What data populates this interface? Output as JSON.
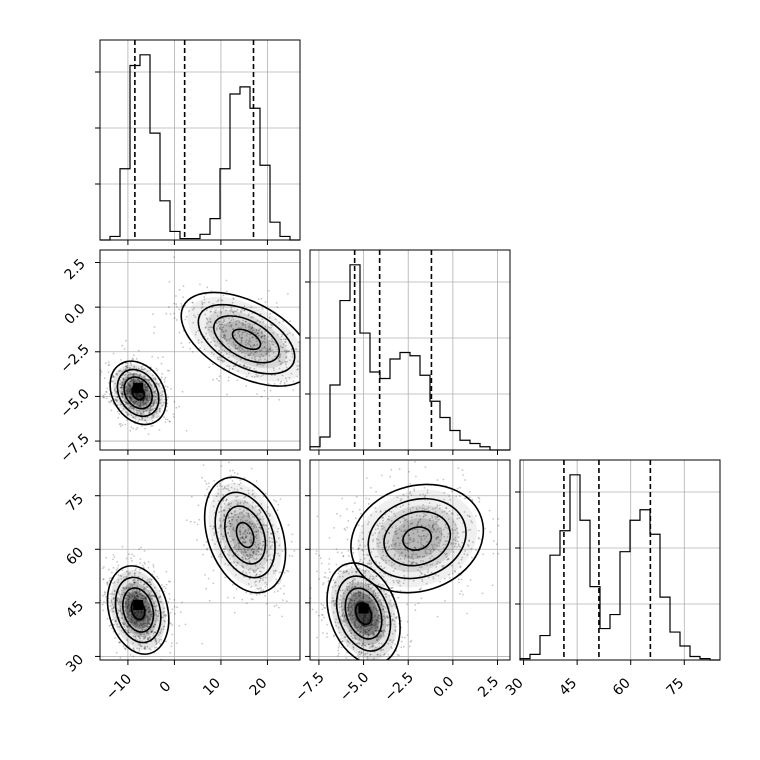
{
  "chart_data": {
    "type": "corner",
    "parameters": [
      {
        "name": "",
        "range": [
          -16,
          27
        ],
        "ticks": [
          -10,
          0,
          10,
          20
        ],
        "tick_labels": [
          "−10",
          "0",
          "10",
          "20"
        ]
      },
      {
        "name": "",
        "range": [
          -8,
          3.2
        ],
        "ticks": [
          -7.5,
          -5.0,
          -2.5,
          0.0,
          2.5
        ],
        "tick_labels": [
          "−7.5",
          "−5.0",
          "−2.5",
          "0.0",
          "2.5"
        ]
      },
      {
        "name": "",
        "range": [
          29,
          85
        ],
        "ticks": [
          30,
          45,
          60,
          75
        ],
        "tick_labels": [
          "30",
          "45",
          "60",
          "75"
        ]
      }
    ],
    "grid": true,
    "histograms": [
      {
        "param": 0,
        "bin_edges": [
          -16,
          -13.85,
          -11.7,
          -9.55,
          -7.4,
          -5.25,
          -3.1,
          -0.95,
          1.2,
          3.35,
          5.5,
          7.65,
          9.8,
          11.95,
          14.1,
          16.25,
          18.4,
          20.55,
          22.7,
          24.85,
          27
        ],
        "counts": [
          0,
          5,
          100,
          245,
          260,
          150,
          55,
          12,
          2,
          2,
          8,
          30,
          100,
          205,
          215,
          185,
          105,
          25,
          5,
          0
        ],
        "quantiles": [
          -8.5,
          2.2,
          17.0
        ]
      },
      {
        "param": 1,
        "bin_edges": [
          -8,
          -7.44,
          -6.88,
          -6.32,
          -5.76,
          -5.2,
          -4.64,
          -4.08,
          -3.52,
          -2.96,
          -2.4,
          -1.84,
          -1.28,
          -0.72,
          -0.16,
          0.4,
          0.96,
          1.52,
          2.08,
          2.64,
          3.2
        ],
        "counts": [
          5,
          20,
          100,
          230,
          285,
          180,
          120,
          110,
          140,
          150,
          145,
          115,
          75,
          50,
          30,
          15,
          10,
          5,
          0,
          0
        ],
        "quantiles": [
          -5.5,
          -4.1,
          -1.2
        ]
      },
      {
        "param": 2,
        "bin_edges": [
          29,
          31.8,
          34.6,
          37.4,
          40.2,
          43,
          45.8,
          48.6,
          51.4,
          54.2,
          57,
          59.8,
          62.6,
          65.4,
          68.2,
          71,
          73.8,
          76.6,
          79.4,
          82.2,
          85
        ],
        "counts": [
          2,
          8,
          35,
          150,
          185,
          265,
          200,
          105,
          45,
          65,
          155,
          200,
          215,
          180,
          90,
          40,
          20,
          5,
          2,
          0
        ],
        "quantiles": [
          41.3,
          51.1,
          65.5
        ]
      }
    ],
    "density_plots": [
      {
        "x_param": 0,
        "y_param": 1,
        "clusters": [
          {
            "center": [
              -7.8,
              -4.8
            ],
            "spread": [
              2.6,
              0.9
            ],
            "rotation_deg": -32,
            "density": "high"
          },
          {
            "center": [
              15.5,
              -1.8
            ],
            "spread": [
              3.8,
              1.9
            ],
            "rotation_deg": -62,
            "density": "medium"
          }
        ]
      },
      {
        "x_param": 0,
        "y_param": 2,
        "clusters": [
          {
            "center": [
              -7.8,
              43
            ],
            "spread": [
              3.0,
              6.0
            ],
            "rotation_deg": -15,
            "density": "high"
          },
          {
            "center": [
              15.2,
              64
            ],
            "spread": [
              3.8,
              8.0
            ],
            "rotation_deg": -20,
            "density": "medium"
          }
        ]
      },
      {
        "x_param": 1,
        "y_param": 2,
        "clusters": [
          {
            "center": [
              -5.0,
              42
            ],
            "spread": [
              0.9,
              7.0
            ],
            "rotation_deg": -20,
            "density": "high"
          },
          {
            "center": [
              -2.0,
              63
            ],
            "spread": [
              1.8,
              7.0
            ],
            "rotation_deg": -18,
            "density": "medium"
          }
        ]
      }
    ]
  }
}
